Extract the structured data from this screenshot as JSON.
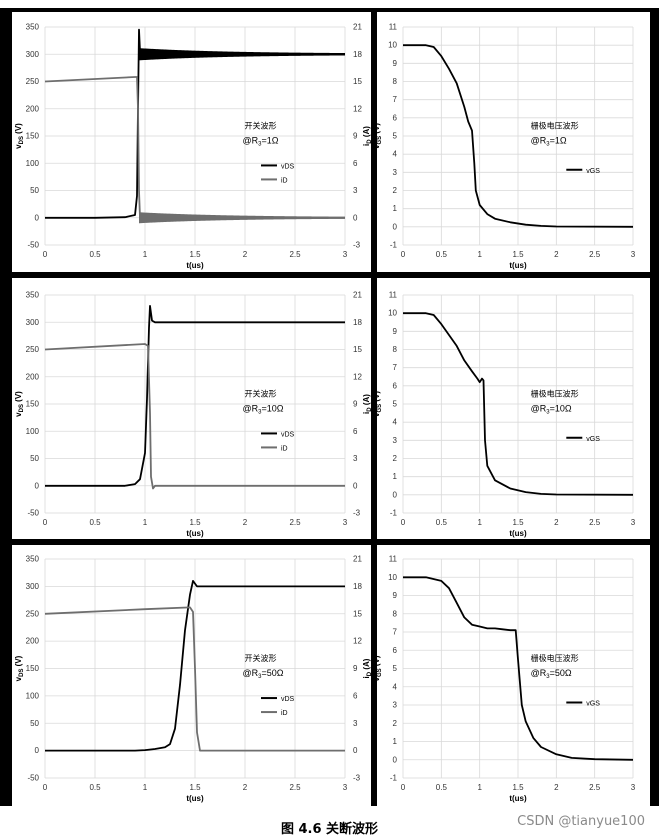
{
  "figure": {
    "caption": "图 4.6  关断波形",
    "watermark": "CSDN @tianyue100"
  },
  "chart_data": [
    {
      "type": "line",
      "id": "switch-1ohm",
      "annotation_title": "开关波形",
      "annotation_param": "@R",
      "annotation_sub": "3",
      "annotation_value": "=1Ω",
      "xlabel": "t(us)",
      "ylabel_main": "v",
      "ylabel_main_sub": "DS",
      "ylabel_main_unit": " (V)",
      "ylabel_right": "i",
      "ylabel_right_sub": "D",
      "ylabel_right_unit": " (A)",
      "xlim": [
        0,
        3
      ],
      "xticks": [
        "0",
        "0.5",
        "1",
        "1.5",
        "2",
        "2.5",
        "3"
      ],
      "ylim": [
        -50,
        350
      ],
      "yticks": [
        "-50",
        "0",
        "50",
        "100",
        "150",
        "200",
        "250",
        "300",
        "350"
      ],
      "y2lim": [
        -3,
        21
      ],
      "y2ticks": [
        "-3",
        "0",
        "3",
        "6",
        "9",
        "12",
        "15",
        "18",
        "21"
      ],
      "legend": [
        "vDS",
        "iD"
      ],
      "series": [
        {
          "name": "vDS",
          "axis": "left",
          "color": "#000000",
          "x": [
            0,
            0.5,
            0.8,
            0.9,
            0.92,
            0.93,
            0.94,
            0.95,
            1.0,
            1.5,
            2.0,
            3.0
          ],
          "y": [
            0,
            0,
            1,
            5,
            40,
            200,
            345,
            305,
            300,
            300,
            300,
            300
          ]
        },
        {
          "name": "iD",
          "axis": "right",
          "color": "#6e6e6e",
          "x": [
            0,
            0.9,
            0.92,
            0.93,
            0.94,
            0.95,
            1.0,
            1.5,
            3.0
          ],
          "y": [
            15.0,
            15.5,
            15.5,
            12.0,
            3.0,
            0.0,
            0.0,
            0.0,
            0.0
          ]
        }
      ]
    },
    {
      "type": "line",
      "id": "gate-1ohm",
      "annotation_title": "栅极电压波形",
      "annotation_param": "@R",
      "annotation_sub": "3",
      "annotation_value": "=1Ω",
      "xlabel": "t(us)",
      "ylabel_main": "v",
      "ylabel_main_sub": "GS",
      "ylabel_main_unit": " (V)",
      "xlim": [
        0,
        3
      ],
      "xticks": [
        "0",
        "0.5",
        "1",
        "1.5",
        "2",
        "2.5",
        "3"
      ],
      "ylim": [
        -1,
        11
      ],
      "yticks": [
        "-1",
        "0",
        "1",
        "2",
        "3",
        "4",
        "5",
        "6",
        "7",
        "8",
        "9",
        "10",
        "11"
      ],
      "legend": [
        "vGS"
      ],
      "series": [
        {
          "name": "vGS",
          "axis": "left",
          "color": "#000000",
          "x": [
            0,
            0.3,
            0.4,
            0.5,
            0.6,
            0.7,
            0.8,
            0.85,
            0.9,
            0.93,
            0.95,
            1.0,
            1.1,
            1.2,
            1.4,
            1.6,
            1.8,
            2.0,
            3.0
          ],
          "y": [
            10,
            10,
            9.9,
            9.4,
            8.7,
            7.9,
            6.6,
            5.8,
            5.3,
            3.5,
            2.0,
            1.2,
            0.7,
            0.45,
            0.25,
            0.12,
            0.05,
            0.02,
            0
          ]
        }
      ]
    },
    {
      "type": "line",
      "id": "switch-10ohm",
      "annotation_title": "开关波形",
      "annotation_param": "@R",
      "annotation_sub": "3",
      "annotation_value": "=10Ω",
      "xlabel": "t(us)",
      "ylabel_main": "v",
      "ylabel_main_sub": "DS",
      "ylabel_main_unit": " (V)",
      "ylabel_right": "i",
      "ylabel_right_sub": "D",
      "ylabel_right_unit": " (A)",
      "xlim": [
        0,
        3
      ],
      "xticks": [
        "0",
        "0.5",
        "1",
        "1.5",
        "2",
        "2.5",
        "3"
      ],
      "ylim": [
        -50,
        350
      ],
      "yticks": [
        "-50",
        "0",
        "50",
        "100",
        "150",
        "200",
        "250",
        "300",
        "350"
      ],
      "y2lim": [
        -3,
        21
      ],
      "y2ticks": [
        "-3",
        "0",
        "3",
        "6",
        "9",
        "12",
        "15",
        "18",
        "21"
      ],
      "legend": [
        "vDS",
        "iD"
      ],
      "series": [
        {
          "name": "vDS",
          "axis": "left",
          "color": "#000000",
          "x": [
            0,
            0.8,
            0.9,
            0.95,
            1.0,
            1.02,
            1.04,
            1.05,
            1.07,
            1.1,
            1.5,
            3.0
          ],
          "y": [
            0,
            0,
            3,
            12,
            60,
            160,
            290,
            330,
            303,
            300,
            300,
            300
          ]
        },
        {
          "name": "iD",
          "axis": "right",
          "color": "#6e6e6e",
          "x": [
            0,
            1.0,
            1.03,
            1.05,
            1.06,
            1.08,
            1.1,
            1.5,
            3.0
          ],
          "y": [
            15.0,
            15.6,
            15.4,
            8.0,
            1.0,
            -0.3,
            0.0,
            0.0,
            0.0
          ]
        }
      ]
    },
    {
      "type": "line",
      "id": "gate-10ohm",
      "annotation_title": "栅极电压波形",
      "annotation_param": "@R",
      "annotation_sub": "3",
      "annotation_value": "=10Ω",
      "xlabel": "t(us)",
      "ylabel_main": "v",
      "ylabel_main_sub": "GS",
      "ylabel_main_unit": " (V)",
      "xlim": [
        0,
        3
      ],
      "xticks": [
        "0",
        "0.5",
        "1",
        "1.5",
        "2",
        "2.5",
        "3"
      ],
      "ylim": [
        -1,
        11
      ],
      "yticks": [
        "-1",
        "0",
        "1",
        "2",
        "3",
        "4",
        "5",
        "6",
        "7",
        "8",
        "9",
        "10",
        "11"
      ],
      "legend": [
        "vGS"
      ],
      "series": [
        {
          "name": "vGS",
          "axis": "left",
          "color": "#000000",
          "x": [
            0,
            0.3,
            0.4,
            0.5,
            0.6,
            0.7,
            0.8,
            0.9,
            0.97,
            1.0,
            1.03,
            1.05,
            1.07,
            1.1,
            1.2,
            1.4,
            1.6,
            1.8,
            2.0,
            3.0
          ],
          "y": [
            10,
            10,
            9.9,
            9.4,
            8.8,
            8.2,
            7.4,
            6.8,
            6.4,
            6.2,
            6.4,
            6.3,
            3.0,
            1.6,
            0.8,
            0.35,
            0.15,
            0.05,
            0.02,
            0
          ]
        }
      ]
    },
    {
      "type": "line",
      "id": "switch-50ohm",
      "annotation_title": "开关波形",
      "annotation_param": "@R",
      "annotation_sub": "3",
      "annotation_value": "=50Ω",
      "xlabel": "t(us)",
      "ylabel_main": "v",
      "ylabel_main_sub": "DS",
      "ylabel_main_unit": " (V)",
      "ylabel_right": "i",
      "ylabel_right_sub": "D",
      "ylabel_right_unit": " (A)",
      "xlim": [
        0,
        3
      ],
      "xticks": [
        "0",
        "0.5",
        "1",
        "1.5",
        "2",
        "2.5",
        "3"
      ],
      "ylim": [
        -50,
        350
      ],
      "yticks": [
        "-50",
        "0",
        "50",
        "100",
        "150",
        "200",
        "250",
        "300",
        "350"
      ],
      "y2lim": [
        -3,
        21
      ],
      "y2ticks": [
        "-3",
        "0",
        "3",
        "6",
        "9",
        "12",
        "15",
        "18",
        "21"
      ],
      "legend": [
        "vDS",
        "iD"
      ],
      "series": [
        {
          "name": "vDS",
          "axis": "left",
          "color": "#000000",
          "x": [
            0,
            0.9,
            1.0,
            1.1,
            1.2,
            1.25,
            1.3,
            1.35,
            1.4,
            1.45,
            1.48,
            1.5,
            1.52,
            1.6,
            3.0
          ],
          "y": [
            0,
            0,
            1,
            3,
            6,
            12,
            40,
            120,
            220,
            285,
            310,
            305,
            300,
            300,
            300
          ]
        },
        {
          "name": "iD",
          "axis": "right",
          "color": "#6e6e6e",
          "x": [
            0,
            1.0,
            1.45,
            1.48,
            1.5,
            1.52,
            1.55,
            1.6,
            3.0
          ],
          "y": [
            15.0,
            15.5,
            15.7,
            15.2,
            9.0,
            2.0,
            0.0,
            0.0,
            0.0
          ]
        }
      ]
    },
    {
      "type": "line",
      "id": "gate-50ohm",
      "annotation_title": "栅极电压波形",
      "annotation_param": "@R",
      "annotation_sub": "3",
      "annotation_value": "=50Ω",
      "xlabel": "t(us)",
      "ylabel_main": "v",
      "ylabel_main_sub": "GS",
      "ylabel_main_unit": " (V)",
      "xlim": [
        0,
        3
      ],
      "xticks": [
        "0",
        "0.5",
        "1",
        "1.5",
        "2",
        "2.5",
        "3"
      ],
      "ylim": [
        -1,
        11
      ],
      "yticks": [
        "-1",
        "0",
        "1",
        "2",
        "3",
        "4",
        "5",
        "6",
        "7",
        "8",
        "9",
        "10",
        "11"
      ],
      "legend": [
        "vGS"
      ],
      "series": [
        {
          "name": "vGS",
          "axis": "left",
          "color": "#000000",
          "x": [
            0,
            0.3,
            0.5,
            0.6,
            0.7,
            0.8,
            0.9,
            1.0,
            1.1,
            1.2,
            1.3,
            1.4,
            1.47,
            1.5,
            1.55,
            1.6,
            1.7,
            1.8,
            2.0,
            2.2,
            2.5,
            3.0
          ],
          "y": [
            10,
            10,
            9.8,
            9.4,
            8.6,
            7.8,
            7.4,
            7.3,
            7.2,
            7.2,
            7.15,
            7.1,
            7.1,
            5.5,
            3.0,
            2.1,
            1.2,
            0.7,
            0.3,
            0.1,
            0.03,
            0
          ]
        }
      ]
    }
  ]
}
